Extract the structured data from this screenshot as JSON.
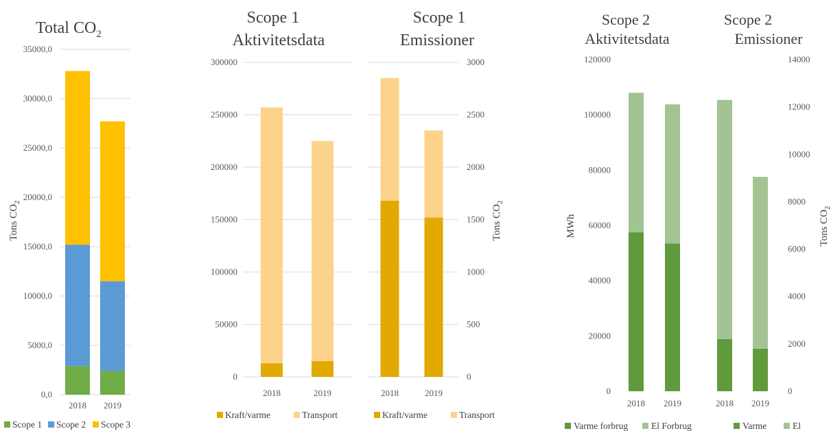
{
  "charts": [
    {
      "title_lines": [
        "Total CO",
        "2"
      ],
      "title_subscript": true,
      "ylabel": "Tons CO",
      "ylabel_sub": "2",
      "y_ticks": [
        "0,0",
        "5000,0",
        "10000,0",
        "15000,0",
        "20000,0",
        "25000,0",
        "30000,0",
        "35000,0"
      ],
      "categories": [
        "2018",
        "2019"
      ],
      "legend": [
        "Scope 1",
        "Scope 2",
        "Scope 3"
      ]
    },
    {
      "title_lines": [
        "Scope 1",
        "Aktivitetsdata"
      ],
      "y_ticks": [
        "0",
        "50000",
        "100000",
        "150000",
        "200000",
        "250000",
        "300000"
      ],
      "categories": [
        "2018",
        "2019"
      ],
      "legend": [
        "Kraft/varme",
        "Transport"
      ]
    },
    {
      "title_lines": [
        "Scope 1",
        "Emissioner"
      ],
      "ylabel": "Tons CO",
      "ylabel_sub": "2",
      "y_ticks": [
        "0",
        "500",
        "1000",
        "1500",
        "2000",
        "2500",
        "3000"
      ],
      "categories": [
        "2018",
        "2019"
      ],
      "legend": [
        "Kraft/varme",
        "Transport"
      ]
    },
    {
      "title_lines": [
        "Scope 2",
        "Aktivitetsdata"
      ],
      "ylabel": "MWh",
      "y_ticks": [
        "0",
        "20000",
        "40000",
        "60000",
        "80000",
        "100000",
        "120000"
      ],
      "categories": [
        "2018",
        "2019"
      ],
      "legend": [
        "Varme forbrug",
        "El Forbrug"
      ]
    },
    {
      "title_lines": [
        "Scope 2",
        "Emissioner"
      ],
      "ylabel": "Tons CO",
      "ylabel_sub": "2",
      "y_ticks": [
        "0",
        "2000",
        "4000",
        "6000",
        "8000",
        "10000",
        "12000",
        "14000"
      ],
      "categories": [
        "2018",
        "2019"
      ],
      "legend": [
        "Varme",
        "El"
      ]
    }
  ],
  "chart_data": [
    {
      "type": "bar",
      "stacked": true,
      "title": "Total CO2",
      "ylabel": "Tons CO2",
      "categories": [
        "2018",
        "2019"
      ],
      "ylim": [
        0,
        35000
      ],
      "grid": true,
      "legend_position": "bottom",
      "series": [
        {
          "name": "Scope 1",
          "color": "#70ad47",
          "values": [
            2900,
            2400
          ]
        },
        {
          "name": "Scope 2",
          "color": "#5b9bd5",
          "values": [
            12300,
            9100
          ]
        },
        {
          "name": "Scope 3",
          "color": "#ffc000",
          "values": [
            17600,
            16200
          ]
        }
      ]
    },
    {
      "type": "bar",
      "stacked": true,
      "title": "Scope 1 Aktivitetsdata",
      "categories": [
        "2018",
        "2019"
      ],
      "ylim": [
        0,
        300000
      ],
      "grid": true,
      "legend_position": "bottom",
      "series": [
        {
          "name": "Kraft/varme",
          "color": "#e2a900",
          "values": [
            13000,
            15000
          ]
        },
        {
          "name": "Transport",
          "color": "#fdd28a",
          "values": [
            244000,
            210000
          ]
        }
      ]
    },
    {
      "type": "bar",
      "stacked": true,
      "title": "Scope 1 Emissioner",
      "ylabel": "Tons CO2",
      "y_axis_side": "right",
      "categories": [
        "2018",
        "2019"
      ],
      "ylim": [
        0,
        3000
      ],
      "grid": true,
      "legend_position": "bottom",
      "series": [
        {
          "name": "Kraft/varme",
          "color": "#e2a900",
          "values": [
            1680,
            1520
          ]
        },
        {
          "name": "Transport",
          "color": "#fdd28a",
          "values": [
            1170,
            830
          ]
        }
      ]
    },
    {
      "type": "bar",
      "stacked": true,
      "title": "Scope 2 Aktivitetsdata",
      "ylabel": "MWh",
      "categories": [
        "2018",
        "2019"
      ],
      "ylim": [
        0,
        120000
      ],
      "grid": false,
      "legend_position": "bottom",
      "series": [
        {
          "name": "Varme forbrug",
          "color": "#5f9a3c",
          "values": [
            57500,
            53500
          ]
        },
        {
          "name": "El Forbrug",
          "color": "#a2c493",
          "values": [
            50500,
            50300
          ]
        }
      ]
    },
    {
      "type": "bar",
      "stacked": true,
      "title": "Scope 2 Emissioner",
      "ylabel": "Tons CO2",
      "y_axis_side": "right",
      "categories": [
        "2018",
        "2019"
      ],
      "ylim": [
        0,
        14000
      ],
      "grid": false,
      "legend_position": "bottom",
      "series": [
        {
          "name": "Varme",
          "color": "#5f9a3c",
          "values": [
            2200,
            1800
          ]
        },
        {
          "name": "El",
          "color": "#a2c493",
          "values": [
            10100,
            7250
          ]
        }
      ]
    }
  ]
}
